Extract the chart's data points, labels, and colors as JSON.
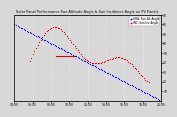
{
  "title": "Solar Panel Performance Sun Altitude Angle & Sun Incidence Angle on PV Panels",
  "legend_blue": "HOA: Sun Alt Angle",
  "legend_red": "INC: Sun Inc Angle",
  "bg_color": "#d8d8d8",
  "plot_bg": "#d8d8d8",
  "blue_color": "#0000ee",
  "red_color": "#dd0000",
  "ylim": [
    0,
    90
  ],
  "yticks_right": [
    10,
    20,
    30,
    40,
    50,
    60,
    70,
    80,
    90
  ],
  "xlim_start": 4.0,
  "xlim_end": 20.0,
  "num_points": 96,
  "dot_size": 0.8,
  "grid_color": "#ffffff",
  "title_fontsize": 2.5,
  "tick_fontsize": 2.2,
  "legend_fontsize": 2.0,
  "hline_y": 47,
  "hline_x_start": 8.5,
  "hline_x_end": 10.5
}
